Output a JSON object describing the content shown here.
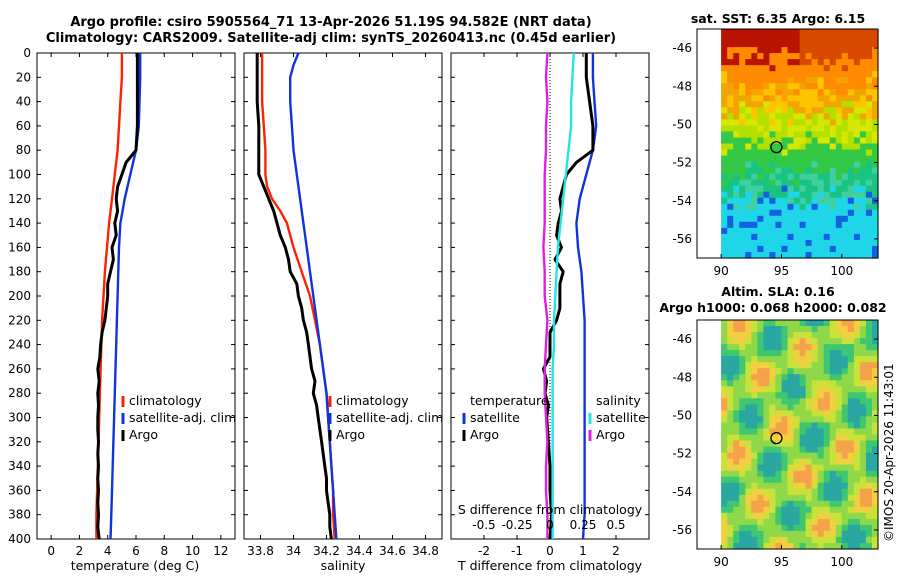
{
  "header": {
    "title_line1": "Argo profile: csiro 5905564_71 13-Apr-2026 51.19S 94.582E (NRT data)",
    "title_line2": "Climatology: CARS2009. Satellite-adj clim: synTS_20260413.nc (0.45d earlier)"
  },
  "colors": {
    "climatology": "#ff2200",
    "satellite_adj": "#1133dd",
    "argo": "#000000",
    "salinity_satellite": "#22e6e6",
    "salinity_diff": "#e020e0"
  },
  "chart_data": [
    {
      "id": "temperature",
      "type": "line",
      "xlabel": "temperature (deg C)",
      "ylabel": "",
      "xlim": [
        -1,
        13
      ],
      "ylim": [
        0,
        400
      ],
      "xticks": [
        "0",
        "2",
        "4",
        "6",
        "8",
        "10",
        "12"
      ],
      "xtick_values": [
        0,
        2,
        4,
        6,
        8,
        10,
        12
      ],
      "yticks": [
        "0",
        "20",
        "40",
        "60",
        "80",
        "100",
        "120",
        "140",
        "160",
        "180",
        "200",
        "220",
        "240",
        "260",
        "280",
        "300",
        "320",
        "340",
        "360",
        "380",
        "400"
      ],
      "ytick_values": [
        0,
        20,
        40,
        60,
        80,
        100,
        120,
        140,
        160,
        180,
        200,
        220,
        240,
        260,
        280,
        300,
        320,
        340,
        360,
        380,
        400
      ],
      "legend": {
        "position": "lower-right",
        "entries": [
          "climatology",
          "satellite-adj. clim",
          "Argo"
        ]
      },
      "series": [
        {
          "name": "climatology",
          "depth": [
            0,
            20,
            40,
            60,
            80,
            100,
            120,
            140,
            160,
            180,
            200,
            220,
            240,
            260,
            280,
            300,
            320,
            340,
            360,
            380,
            400
          ],
          "values": [
            5.0,
            5.0,
            4.9,
            4.8,
            4.7,
            4.5,
            4.3,
            4.1,
            3.95,
            3.8,
            3.7,
            3.6,
            3.55,
            3.5,
            3.45,
            3.4,
            3.35,
            3.3,
            3.25,
            3.2,
            3.2
          ]
        },
        {
          "name": "satellite-adj. clim",
          "depth": [
            0,
            20,
            40,
            60,
            80,
            100,
            120,
            140,
            160,
            180,
            200,
            220,
            240,
            260,
            280,
            300,
            320,
            340,
            360,
            380,
            400
          ],
          "values": [
            6.3,
            6.3,
            6.25,
            6.2,
            6.0,
            5.6,
            5.2,
            4.9,
            4.8,
            4.75,
            4.7,
            4.65,
            4.6,
            4.55,
            4.5,
            4.45,
            4.4,
            4.35,
            4.3,
            4.25,
            4.2
          ]
        },
        {
          "name": "Argo",
          "depth": [
            0,
            20,
            40,
            60,
            80,
            90,
            100,
            110,
            120,
            130,
            140,
            150,
            160,
            170,
            180,
            190,
            200,
            210,
            220,
            230,
            240,
            250,
            260,
            270,
            280,
            290,
            300,
            310,
            320,
            330,
            340,
            350,
            360,
            370,
            380,
            390,
            400
          ],
          "values": [
            6.1,
            6.1,
            6.1,
            6.1,
            6.0,
            5.3,
            5.0,
            4.7,
            4.6,
            4.7,
            4.5,
            4.6,
            4.3,
            4.4,
            4.2,
            4.0,
            4.0,
            3.9,
            3.8,
            3.6,
            3.5,
            3.45,
            3.3,
            3.4,
            3.3,
            3.35,
            3.3,
            3.3,
            3.35,
            3.3,
            3.35,
            3.3,
            3.35,
            3.3,
            3.35,
            3.3,
            3.4
          ]
        }
      ]
    },
    {
      "id": "salinity",
      "type": "line",
      "xlabel": "salinity",
      "ylabel": "",
      "xlim": [
        33.7,
        34.9
      ],
      "ylim": [
        0,
        400
      ],
      "xticks": [
        "33.8",
        "34",
        "34.2",
        "34.4",
        "34.6",
        "34.8"
      ],
      "xtick_values": [
        33.8,
        34.0,
        34.2,
        34.4,
        34.6,
        34.8
      ],
      "legend": {
        "position": "lower-right",
        "entries": [
          "climatology",
          "satellite-adj. clim",
          "Argo"
        ]
      },
      "series": [
        {
          "name": "climatology",
          "depth": [
            0,
            20,
            40,
            60,
            80,
            100,
            110,
            120,
            130,
            140,
            160,
            180,
            200,
            220,
            240,
            260,
            280,
            300,
            320,
            340,
            360,
            380,
            400
          ],
          "values": [
            33.81,
            33.81,
            33.81,
            33.82,
            33.83,
            33.83,
            33.84,
            33.87,
            33.92,
            33.96,
            34.0,
            34.05,
            34.1,
            34.13,
            34.16,
            34.18,
            34.2,
            34.21,
            34.22,
            34.23,
            34.24,
            34.24,
            34.25
          ]
        },
        {
          "name": "satellite-adj. clim",
          "depth": [
            0,
            10,
            20,
            40,
            60,
            80,
            100,
            120,
            140,
            160,
            180,
            200,
            220,
            240,
            260,
            280,
            300,
            320,
            340,
            360,
            380,
            400
          ],
          "values": [
            34.03,
            34.0,
            33.98,
            33.98,
            33.99,
            34.0,
            34.02,
            34.04,
            34.06,
            34.08,
            34.1,
            34.12,
            34.14,
            34.16,
            34.18,
            34.2,
            34.21,
            34.22,
            34.23,
            34.24,
            34.25,
            34.26
          ]
        },
        {
          "name": "Argo",
          "depth": [
            0,
            20,
            40,
            60,
            80,
            100,
            110,
            120,
            130,
            140,
            150,
            160,
            170,
            180,
            190,
            200,
            210,
            220,
            230,
            240,
            250,
            260,
            270,
            280,
            290,
            300,
            310,
            320,
            330,
            340,
            350,
            360,
            370,
            380,
            390,
            400
          ],
          "values": [
            33.78,
            33.78,
            33.78,
            33.79,
            33.79,
            33.79,
            33.82,
            33.85,
            33.88,
            33.9,
            33.92,
            33.95,
            33.97,
            33.98,
            34.02,
            34.03,
            34.05,
            34.06,
            34.08,
            34.09,
            34.1,
            34.11,
            34.13,
            34.12,
            34.14,
            34.15,
            34.16,
            34.17,
            34.18,
            34.19,
            34.2,
            34.2,
            34.21,
            34.22,
            34.22,
            34.23
          ]
        }
      ]
    },
    {
      "id": "difference",
      "type": "line",
      "xlabel": "T difference from climatology",
      "xlabel_top": "S difference from climatology",
      "xlim": [
        -3,
        3
      ],
      "ylim": [
        0,
        400
      ],
      "xticks": [
        "-2",
        "-1",
        "0",
        "1",
        "2"
      ],
      "xtick_values": [
        -2,
        -1,
        0,
        1,
        2
      ],
      "top_ticks": [
        "-0.5",
        "-0.25",
        "0",
        "0.25",
        "0.5"
      ],
      "top_tick_values": [
        -0.5,
        -0.25,
        0,
        0.25,
        0.5
      ],
      "legend_left": {
        "title": "temperature",
        "entries": [
          "satellite",
          "Argo"
        ]
      },
      "legend_right": {
        "title": "salinity",
        "entries": [
          "satellite",
          "Argo"
        ]
      },
      "series": [
        {
          "name": "T satellite",
          "depth": [
            0,
            20,
            40,
            60,
            80,
            100,
            120,
            140,
            160,
            180,
            200,
            220,
            240,
            260,
            280,
            300,
            320,
            340,
            360,
            380,
            400
          ],
          "values": [
            1.3,
            1.3,
            1.35,
            1.4,
            1.3,
            1.1,
            0.9,
            0.8,
            0.85,
            0.95,
            1.0,
            1.05,
            1.05,
            1.05,
            1.05,
            1.05,
            1.05,
            1.05,
            1.05,
            1.05,
            1.0
          ]
        },
        {
          "name": "T Argo",
          "depth": [
            0,
            20,
            40,
            60,
            80,
            90,
            100,
            110,
            120,
            130,
            140,
            150,
            160,
            170,
            180,
            190,
            200,
            210,
            220,
            230,
            240,
            250,
            260,
            270,
            280,
            290,
            300,
            320,
            340,
            360,
            380,
            400
          ],
          "values": [
            1.1,
            1.1,
            1.2,
            1.3,
            1.3,
            0.8,
            0.5,
            0.4,
            0.3,
            0.35,
            0.25,
            0.2,
            0.35,
            0.15,
            0.4,
            0.3,
            0.3,
            0.3,
            0.2,
            0.0,
            0.0,
            0.0,
            -0.2,
            -0.1,
            -0.15,
            -0.05,
            -0.1,
            -0.05,
            0.0,
            0.0,
            0.05,
            0.0
          ]
        },
        {
          "name": "S satellite",
          "depth": [
            0,
            20,
            40,
            60,
            80,
            100,
            120,
            140,
            160,
            180,
            200,
            220,
            240,
            260,
            280,
            300,
            320,
            340,
            360,
            380,
            400
          ],
          "values": [
            0.18,
            0.17,
            0.16,
            0.16,
            0.14,
            0.12,
            0.1,
            0.08,
            0.06,
            0.05,
            0.04,
            0.03,
            0.03,
            0.02,
            0.02,
            0.02,
            0.02,
            0.02,
            0.02,
            0.02,
            0.02
          ]
        },
        {
          "name": "S Argo",
          "depth": [
            0,
            20,
            40,
            60,
            80,
            100,
            120,
            140,
            160,
            180,
            200,
            220,
            240,
            260,
            280,
            300,
            320,
            340,
            360,
            380,
            400
          ],
          "values": [
            -0.02,
            -0.03,
            -0.02,
            -0.03,
            -0.03,
            -0.04,
            -0.04,
            -0.04,
            -0.05,
            -0.04,
            -0.04,
            -0.02,
            -0.03,
            -0.04,
            -0.04,
            -0.03,
            -0.02,
            -0.03,
            -0.03,
            -0.02,
            -0.02
          ]
        }
      ]
    },
    {
      "id": "sst_map",
      "type": "heatmap",
      "title": "sat. SST: 6.35 Argo: 6.15",
      "xlim": [
        88,
        103
      ],
      "ylim": [
        -57,
        -45
      ],
      "xticks": [
        "90",
        "95",
        "100"
      ],
      "xtick_values": [
        90,
        95,
        100
      ],
      "yticks": [
        "-46",
        "-48",
        "-50",
        "-52",
        "-54",
        "-56"
      ],
      "ytick_values": [
        -46,
        -48,
        -50,
        -52,
        -54,
        -56
      ],
      "marker": {
        "lon": 94.582,
        "lat": -51.19
      }
    },
    {
      "id": "sla_map",
      "type": "heatmap",
      "title_line1": "Altim. SLA: 0.16",
      "title_line2": "Argo h1000: 0.068 h2000: 0.082",
      "xlim": [
        88,
        103
      ],
      "ylim": [
        -57,
        -45
      ],
      "xticks": [
        "90",
        "95",
        "100"
      ],
      "xtick_values": [
        90,
        95,
        100
      ],
      "yticks": [
        "-46",
        "-48",
        "-50",
        "-52",
        "-54",
        "-56"
      ],
      "ytick_values": [
        -46,
        -48,
        -50,
        -52,
        -54,
        -56
      ],
      "marker": {
        "lon": 94.582,
        "lat": -51.19
      }
    }
  ],
  "stamp": "©IMOS 20-Apr-2026 11:43:01"
}
